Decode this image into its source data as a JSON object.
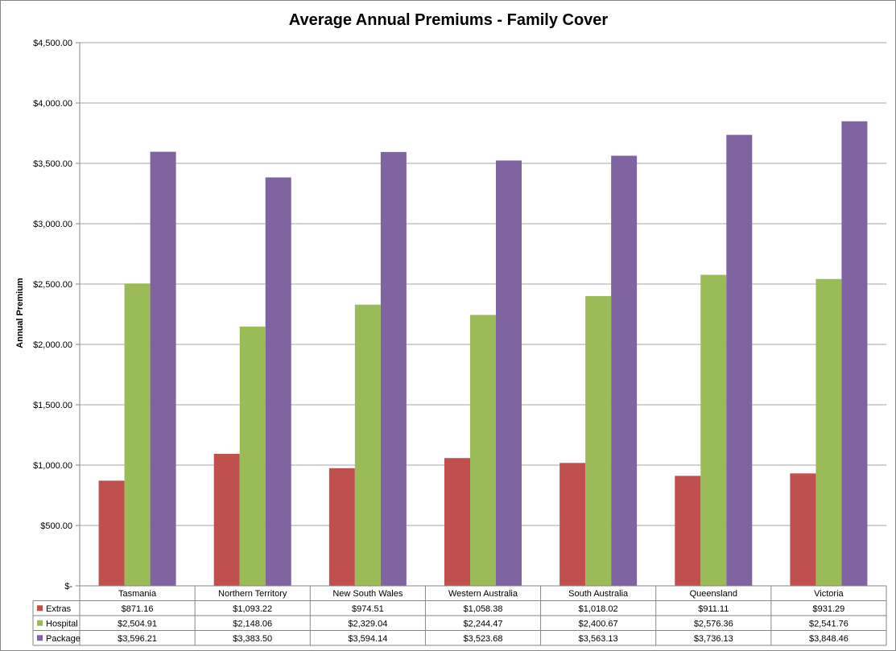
{
  "chart_data": {
    "type": "bar",
    "title": "Average Annual Premiums - Family Cover",
    "xlabel": "",
    "ylabel": "Annual Premium",
    "ylim": [
      0,
      4500
    ],
    "yticks": [
      0,
      500,
      1000,
      1500,
      2000,
      2500,
      3000,
      3500,
      4000,
      4500
    ],
    "ytick_labels": [
      "$-",
      "$500.00",
      "$1,000.00",
      "$1,500.00",
      "$2,000.00",
      "$2,500.00",
      "$3,000.00",
      "$3,500.00",
      "$4,000.00",
      "$4,500.00"
    ],
    "grid": true,
    "legend": "data-table",
    "categories": [
      "Tasmania",
      "Northern Territory",
      "New South Wales",
      "Western Australia",
      "South Australia",
      "Queensland",
      "Victoria"
    ],
    "series": [
      {
        "name": "Extras",
        "color": "#C0504D",
        "values": [
          871.16,
          1093.22,
          974.51,
          1058.38,
          1018.02,
          911.11,
          931.29
        ],
        "labels": [
          "$871.16",
          "$1,093.22",
          "$974.51",
          "$1,058.38",
          "$1,018.02",
          "$911.11",
          "$931.29"
        ]
      },
      {
        "name": "Hospital",
        "color": "#9BBB59",
        "values": [
          2504.91,
          2148.06,
          2329.04,
          2244.47,
          2400.67,
          2576.36,
          2541.76
        ],
        "labels": [
          "$2,504.91",
          "$2,148.06",
          "$2,329.04",
          "$2,244.47",
          "$2,400.67",
          "$2,576.36",
          "$2,541.76"
        ]
      },
      {
        "name": "Package",
        "color": "#8064A2",
        "values": [
          3596.21,
          3383.5,
          3594.14,
          3523.68,
          3563.13,
          3736.13,
          3848.46
        ],
        "labels": [
          "$3,596.21",
          "$3,383.50",
          "$3,594.14",
          "$3,523.68",
          "$3,563.13",
          "$3,736.13",
          "$3,848.46"
        ]
      }
    ]
  }
}
